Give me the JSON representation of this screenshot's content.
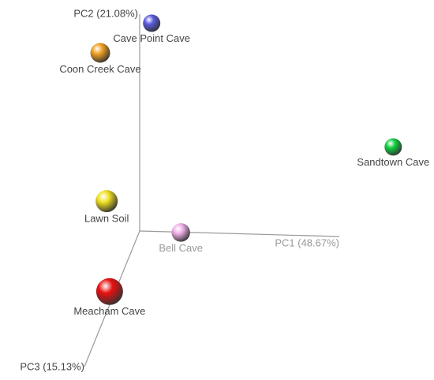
{
  "chart_data": {
    "type": "scatter3d",
    "xlabel": "PC1 (48.67%)",
    "ylabel": "PC2 (21.08%)",
    "zlabel": "PC3 (15.13%)",
    "xlim": [
      0,
      1
    ],
    "ylim": [
      0,
      1
    ],
    "zlim": [
      0,
      1
    ],
    "points": [
      {
        "name": "Cave Point Cave",
        "color": "#5a5ae0",
        "x": 0.06,
        "y": 0.96,
        "z": 0
      },
      {
        "name": "Coon Creek Cave",
        "color": "#f0a020",
        "x": -0.17,
        "y": 0.88,
        "z": 0.1
      },
      {
        "name": "Sandtown Cave",
        "color": "#10d040",
        "x": 1.27,
        "y": 0.42,
        "z": 0
      },
      {
        "name": "Lawn Soil",
        "color": "#f0e020",
        "x": -0.11,
        "y": 0.26,
        "z": 0.2
      },
      {
        "name": "Bell Cave",
        "color": "#f0b0e8",
        "x": 0.22,
        "y": 0.03,
        "z": 0.05
      },
      {
        "name": "Meacham Cave",
        "color": "#e81010",
        "x": -0.04,
        "y": -0.03,
        "z": 0.4
      }
    ]
  }
}
